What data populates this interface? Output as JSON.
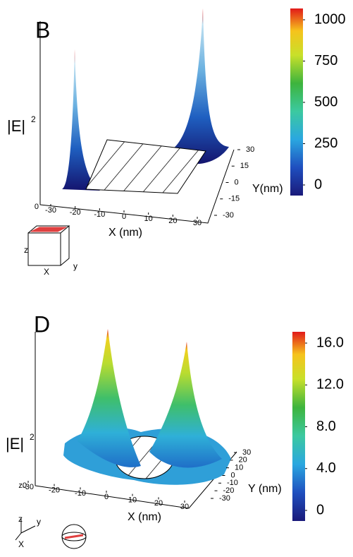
{
  "panels": [
    {
      "label": "B",
      "z_label": "|E|",
      "z_exponent": "2",
      "z_zero": "0",
      "x_title": "X (nm)",
      "y_title": "Y(nm)",
      "xlim": [
        -30,
        30
      ],
      "xticks": [
        -30,
        -20,
        -10,
        0,
        10,
        20,
        30
      ],
      "ylim": [
        -30,
        30
      ],
      "yticks": [
        30,
        15,
        0,
        -15,
        -30
      ],
      "colorbar": {
        "lim": [
          0,
          1000
        ],
        "ticks": [
          1000,
          750,
          500,
          250,
          0
        ]
      },
      "icon": {
        "z": "z",
        "x": "X",
        "y": "y"
      }
    },
    {
      "label": "D",
      "z_label": "|E|",
      "z_exponent": "2",
      "z_zero": "z0",
      "x_title": "X (nm)",
      "y_title": "Y (nm)",
      "xlim": [
        -30,
        30
      ],
      "xticks": [
        -30,
        -20,
        -10,
        0,
        10,
        20,
        30
      ],
      "ylim": [
        -30,
        30
      ],
      "yticks": [
        30,
        20,
        10,
        0,
        -10,
        -20,
        -30
      ],
      "colorbar": {
        "lim": [
          0,
          16
        ],
        "ticks": [
          {
            "value": 16,
            "label": "16.0"
          },
          {
            "value": 12,
            "label": "12.0"
          },
          {
            "value": 8,
            "label": "8.0"
          },
          {
            "value": 4,
            "label": "4.0"
          },
          0
        ]
      },
      "icon": {
        "z": "z",
        "x": "X",
        "y": "y"
      }
    }
  ]
}
